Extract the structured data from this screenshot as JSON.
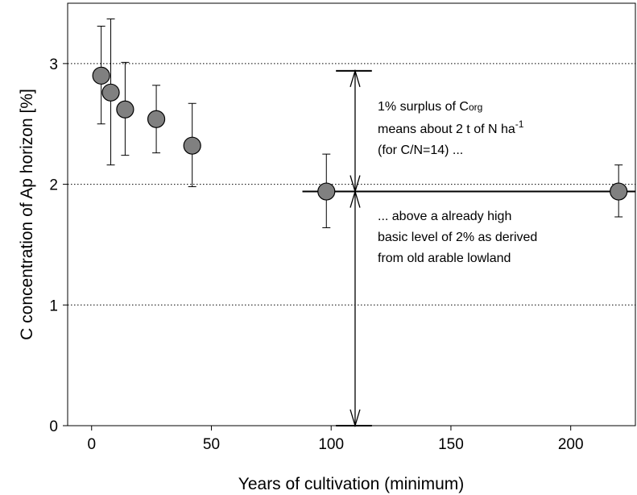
{
  "chart_data": {
    "type": "scatter",
    "xlabel": "Years of cultivation (minimum)",
    "ylabel": "C concentration of Ap horizon [%]",
    "xlim": [
      -10,
      227
    ],
    "ylim": [
      0,
      3.5
    ],
    "x_ticks": [
      0,
      50,
      100,
      150,
      200
    ],
    "y_ticks": [
      0,
      1,
      2,
      3
    ],
    "x_tick_labels": [
      "0",
      "50",
      "100",
      "150",
      "200"
    ],
    "y_tick_labels": [
      "0",
      "1",
      "2",
      "3"
    ],
    "y_gridlines": [
      1,
      2,
      3
    ],
    "grid": "horizontal dotted",
    "marker_color": "#808080",
    "points": [
      {
        "x": 4,
        "y": 2.9,
        "err_low": 2.5,
        "err_high": 3.31
      },
      {
        "x": 8,
        "y": 2.76,
        "err_low": 2.16,
        "err_high": 3.37
      },
      {
        "x": 14,
        "y": 2.62,
        "err_low": 2.24,
        "err_high": 3.01
      },
      {
        "x": 27,
        "y": 2.54,
        "err_low": 2.26,
        "err_high": 2.82
      },
      {
        "x": 42,
        "y": 2.32,
        "err_low": 1.98,
        "err_high": 2.67
      },
      {
        "x": 98,
        "y": 1.94,
        "err_low": 1.64,
        "err_high": 2.25
      },
      {
        "x": 220,
        "y": 1.94,
        "err_low": 1.73,
        "err_high": 2.16
      }
    ],
    "reference_line": {
      "y": 1.94,
      "x_start": 88,
      "x_end": 227
    },
    "arrow_x": 110,
    "top_cap": {
      "y": 2.94,
      "x_start": 102,
      "x_end": 117
    },
    "bottom_cap": {
      "y": 0,
      "x_start": 102,
      "x_end": 117
    },
    "annotations": {
      "upper_line1_prefix": "1% surplus of C",
      "upper_line1_sub": "org",
      "upper_line2": "means about 2 t of N ha",
      "upper_line2_sup": "-1",
      "upper_line3": "(for C/N=14) ...",
      "lower_line1": "... above a already high",
      "lower_line2": "basic level of 2% as derived",
      "lower_line3": "from old arable lowland"
    }
  }
}
